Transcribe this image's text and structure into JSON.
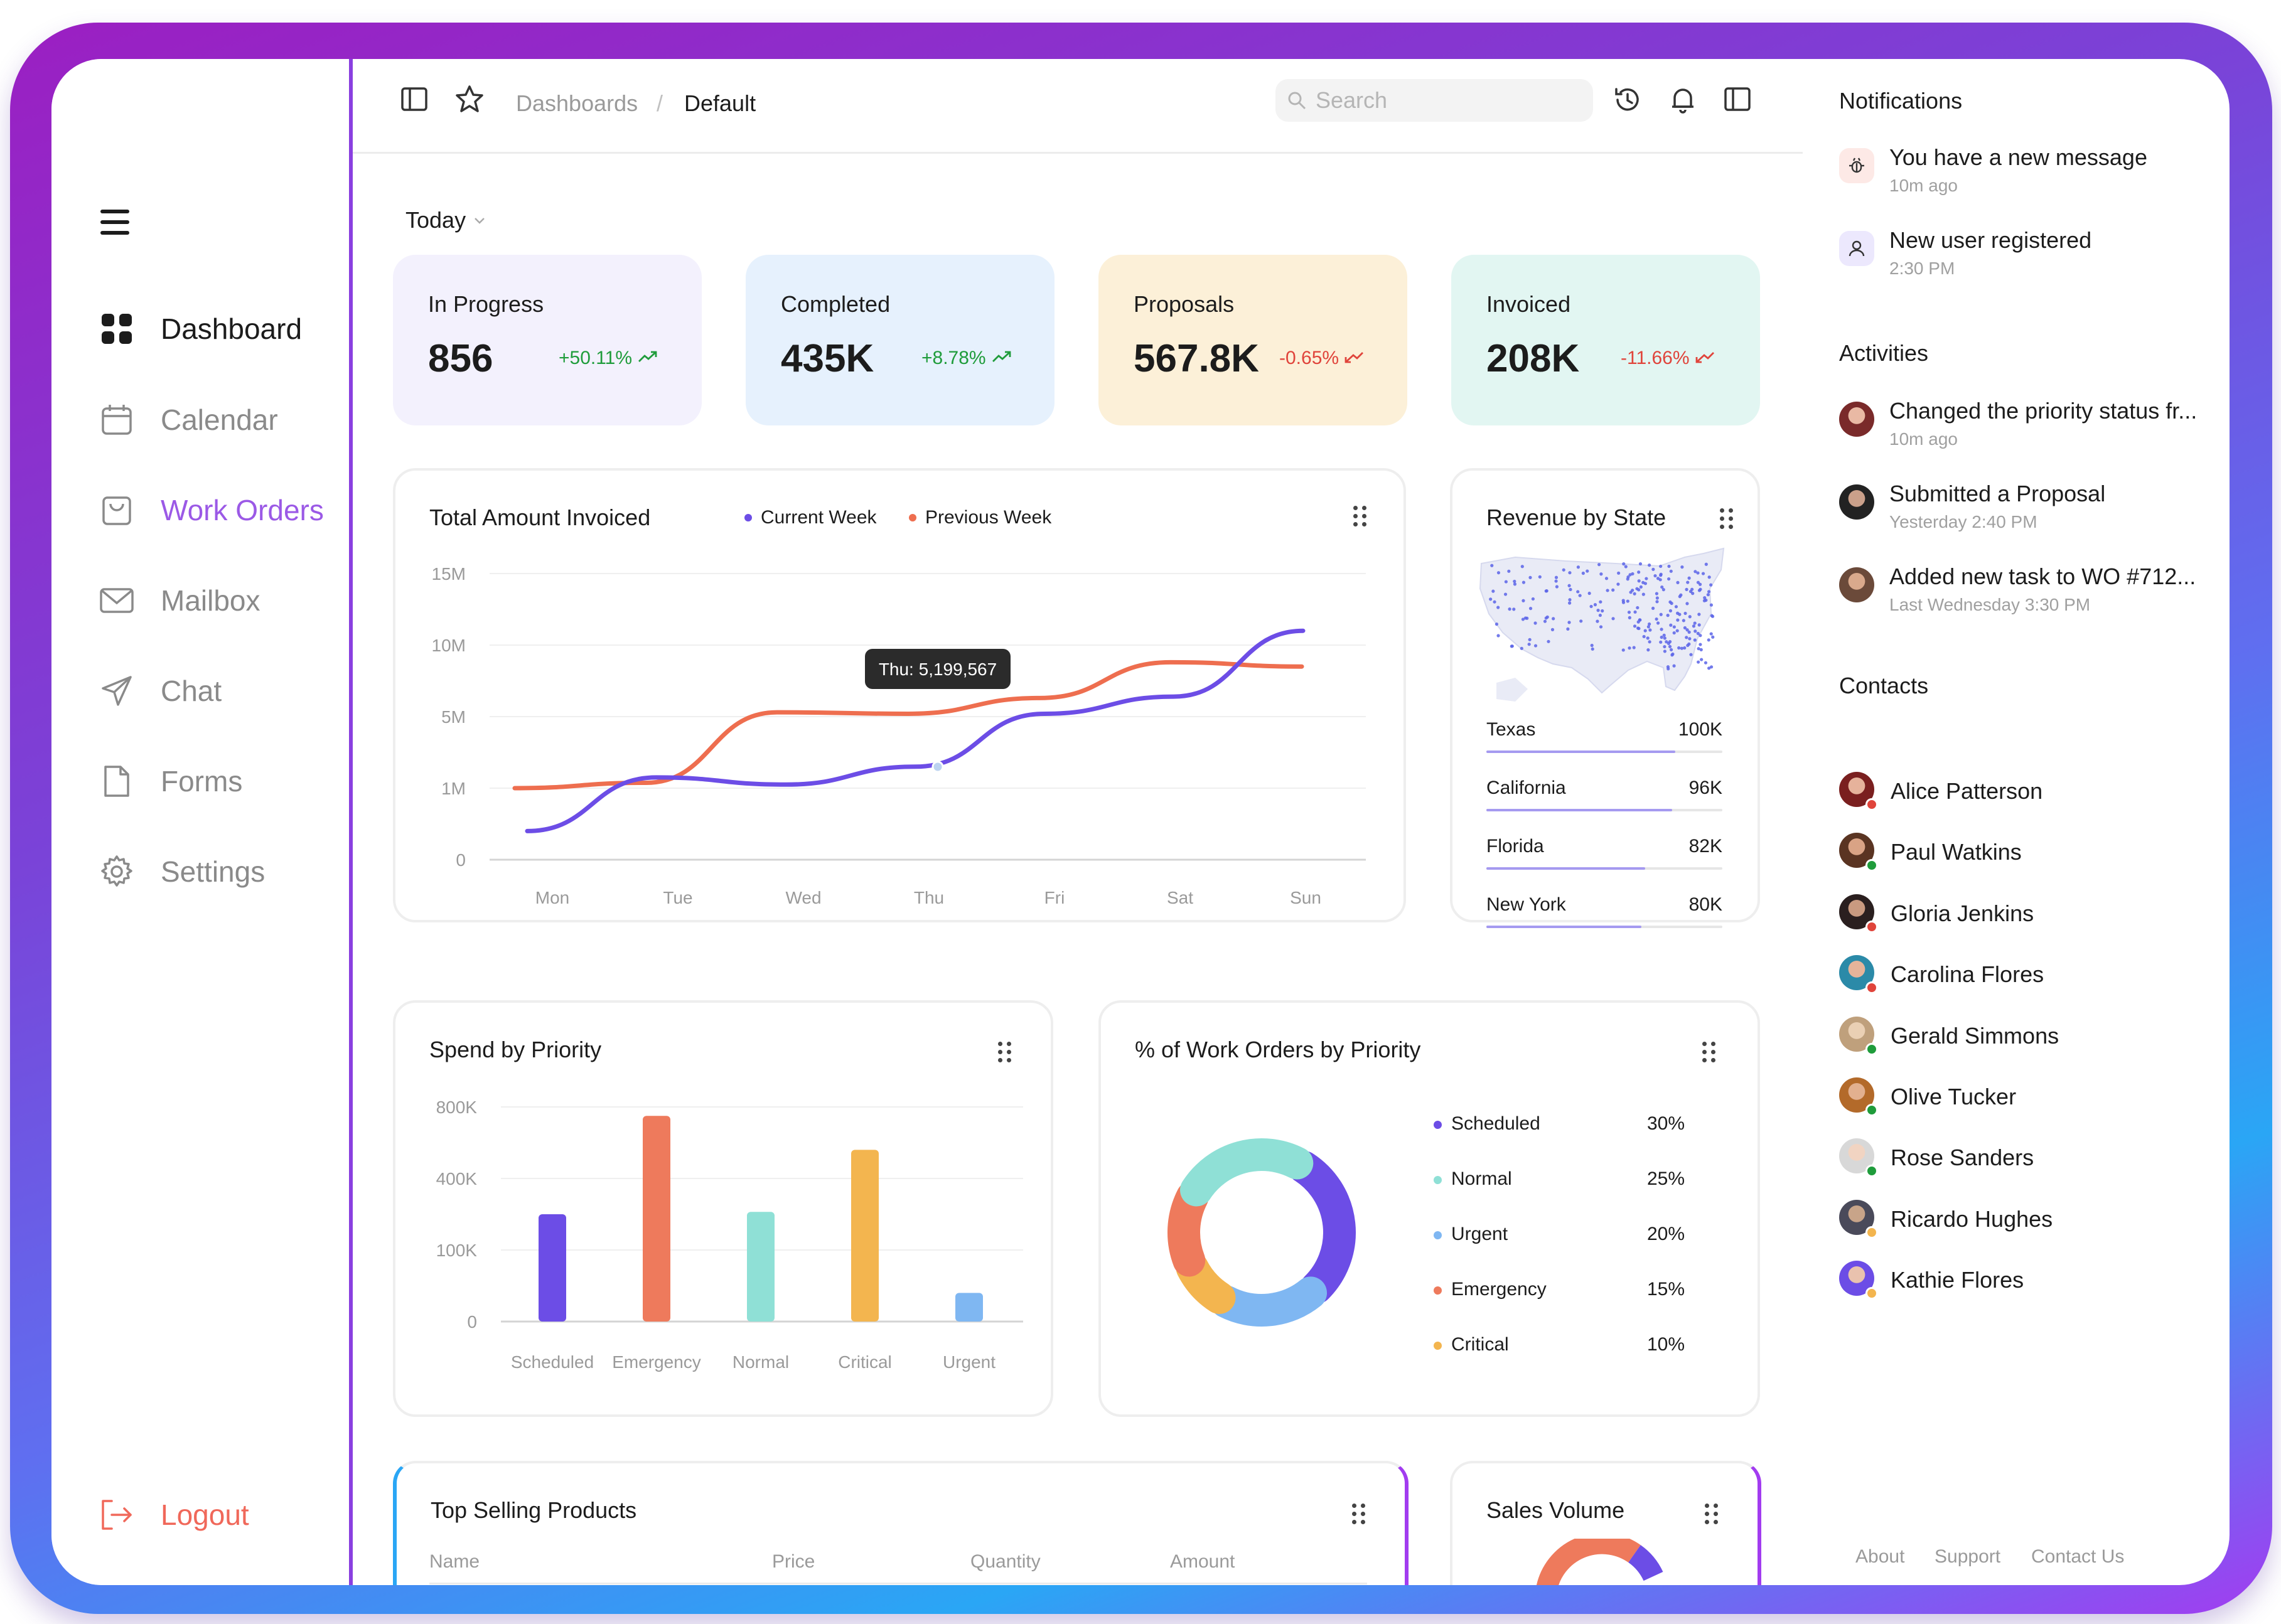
{
  "sidebar": {
    "items": [
      {
        "label": "Dashboard"
      },
      {
        "label": "Calendar"
      },
      {
        "label": "Work Orders"
      },
      {
        "label": "Mailbox"
      },
      {
        "label": "Chat"
      },
      {
        "label": "Forms"
      },
      {
        "label": "Settings"
      }
    ],
    "logout": "Logout"
  },
  "header": {
    "breadcrumb_root": "Dashboards",
    "breadcrumb_sep": "/",
    "breadcrumb_current": "Default",
    "search_placeholder": "Search"
  },
  "filter": {
    "period": "Today"
  },
  "stats": [
    {
      "label": "In Progress",
      "value": "856",
      "delta": "+50.11%",
      "trend": "up"
    },
    {
      "label": "Completed",
      "value": "435K",
      "delta": "+8.78%",
      "trend": "up"
    },
    {
      "label": "Proposals",
      "value": "567.8K",
      "delta": "-0.65%",
      "trend": "down"
    },
    {
      "label": "Invoiced",
      "value": "208K",
      "delta": "-11.66%",
      "trend": "down"
    }
  ],
  "colors": {
    "stat_bg": [
      "#f3f1fd",
      "#e6f1fd",
      "#fcf0d8",
      "#e2f6f2"
    ],
    "up": "#1f9c3b",
    "down": "#e0443b",
    "current_week": "#6c4de6",
    "previous_week": "#ee6e4f"
  },
  "chart_data": [
    {
      "type": "line",
      "title": "Total Amount Invoiced",
      "categories": [
        "Mon",
        "Tue",
        "Wed",
        "Thu",
        "Fri",
        "Sat",
        "Sun"
      ],
      "y_ticks": [
        "15M",
        "10M",
        "5M",
        "1M",
        "0"
      ],
      "series": [
        {
          "name": "Current Week",
          "values": [
            0.4,
            1.6,
            1.2,
            2.2,
            5.2,
            6.4,
            11
          ]
        },
        {
          "name": "Previous Week",
          "values": [
            1.0,
            1.3,
            5.3,
            5.2,
            6.3,
            8.8,
            8.5
          ]
        }
      ],
      "tooltip": "Thu: 5,199,567"
    },
    {
      "type": "bar",
      "title": "Spend by Priority",
      "categories": [
        "Scheduled",
        "Emergency",
        "Normal",
        "Critical",
        "Urgent"
      ],
      "values": [
        250,
        750,
        260,
        560,
        40
      ],
      "y_ticks": [
        "800K",
        "400K",
        "100K",
        "0"
      ],
      "colors": [
        "#6c4de6",
        "#ee7a5c",
        "#8fe0d6",
        "#f3b54f",
        "#7fb7f2"
      ]
    },
    {
      "type": "pie",
      "title": "% of Work Orders by Priority",
      "labels": [
        "Scheduled",
        "Normal",
        "Urgent",
        "Emergency",
        "Critical"
      ],
      "values": [
        "30%",
        "25%",
        "20%",
        "15%",
        "10%"
      ],
      "colors": [
        "#6c4de6",
        "#8fe0d6",
        "#7fb7f2",
        "#ee7a5c",
        "#f3b54f"
      ]
    },
    {
      "type": "table",
      "title": "Revenue by State",
      "rows": [
        {
          "label": "Texas",
          "value": "100K",
          "fraction": 1.0
        },
        {
          "label": "California",
          "value": "96K",
          "fraction": 0.96
        },
        {
          "label": "Florida",
          "value": "82K",
          "fraction": 0.82
        },
        {
          "label": "New York",
          "value": "80K",
          "fraction": 0.8
        }
      ]
    }
  ],
  "panels": {
    "top_products": {
      "title": "Top Selling Products",
      "columns": [
        "Name",
        "Price",
        "Quantity",
        "Amount"
      ]
    },
    "sales_volume": {
      "title": "Sales Volume"
    }
  },
  "right": {
    "notifications_title": "Notifications",
    "notifications": [
      {
        "text": "You have a new message",
        "time": "10m ago"
      },
      {
        "text": "New user registered",
        "time": "2:30 PM"
      }
    ],
    "activities_title": "Activities",
    "activities": [
      {
        "text": "Changed the priority status fr...",
        "time": "10m ago"
      },
      {
        "text": "Submitted a Proposal",
        "time": "Yesterday 2:40 PM"
      },
      {
        "text": "Added new task to WO #712...",
        "time": "Last Wednesday 3:30 PM"
      }
    ],
    "contacts_title": "Contacts",
    "contacts": [
      {
        "name": "Alice Patterson",
        "status": "#e0443b"
      },
      {
        "name": "Paul Watkins",
        "status": "#1f9c3b"
      },
      {
        "name": "Gloria Jenkins",
        "status": "#e0443b"
      },
      {
        "name": "Carolina Flores",
        "status": "#e0443b"
      },
      {
        "name": "Gerald Simmons",
        "status": "#1f9c3b"
      },
      {
        "name": "Olive Tucker",
        "status": "#1f9c3b"
      },
      {
        "name": "Rose Sanders",
        "status": "#1f9c3b"
      },
      {
        "name": "Ricardo Hughes",
        "status": "#f3b54f"
      },
      {
        "name": "Kathie Flores",
        "status": "#f3b54f"
      }
    ],
    "footer": [
      "About",
      "Support",
      "Contact Us"
    ]
  }
}
